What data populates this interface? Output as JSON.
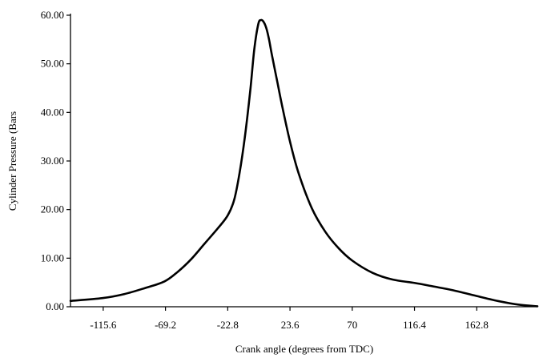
{
  "chart_data": {
    "type": "line",
    "title": "",
    "xlabel": "Crank angle (degrees from TDC)",
    "ylabel": "Cylinder Pressure (Bars",
    "xlim": [
      -140,
      208
    ],
    "ylim": [
      0,
      60
    ],
    "x_ticks": [
      -115.6,
      -69.2,
      -22.8,
      23.6,
      70,
      116.4,
      162.8
    ],
    "x_tick_labels": [
      "-115.6",
      "-69.2",
      "-22.8",
      "23.6",
      "70",
      "116.4",
      "162.8"
    ],
    "y_ticks": [
      0,
      10,
      20,
      30,
      40,
      50,
      60
    ],
    "y_tick_labels": [
      "0.00",
      "10.00",
      "20.00",
      "30.00",
      "40.00",
      "50.00",
      "60.00"
    ],
    "grid": false,
    "series": [
      {
        "color": "#000000",
        "x": [
          -140,
          -115.6,
          -100,
          -85,
          -70,
          -60,
          -50,
          -40,
          -30,
          -22.8,
          -18,
          -14,
          -10,
          -6,
          -3,
          0,
          2,
          4,
          6,
          8,
          10,
          14,
          18,
          23.6,
          30,
          40,
          50,
          60,
          70,
          85,
          100,
          116.4,
          130,
          145,
          162.8,
          180,
          195,
          208
        ],
        "y": [
          1.2,
          1.8,
          2.6,
          3.8,
          5.2,
          7.2,
          9.8,
          13.0,
          16.2,
          18.8,
          22.0,
          27.5,
          35.0,
          44.5,
          53.0,
          58.2,
          59.0,
          58.6,
          57.3,
          55.0,
          52.0,
          46.5,
          41.0,
          34.0,
          27.5,
          20.2,
          15.4,
          12.0,
          9.5,
          7.0,
          5.6,
          4.9,
          4.2,
          3.4,
          2.2,
          1.1,
          0.4,
          0.1
        ]
      }
    ]
  }
}
